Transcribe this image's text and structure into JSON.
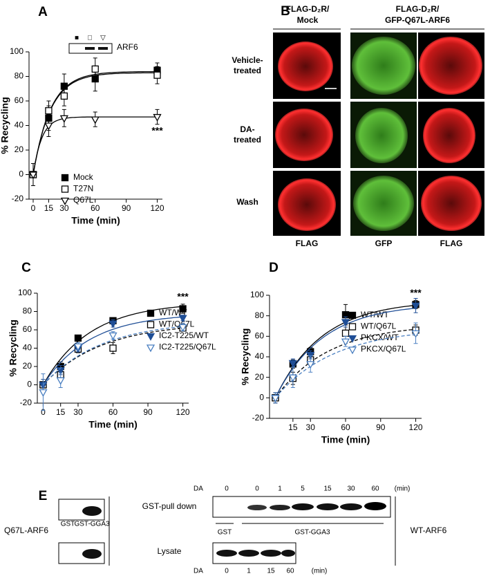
{
  "chart_data": [
    {
      "type": "scatter",
      "label": "A",
      "ylabel": "% Recycling",
      "xlabel": "Time (min)",
      "x": [
        0,
        15,
        30,
        60,
        120
      ],
      "series": [
        {
          "name": "Mock",
          "color": "#000000",
          "marker": "filled-square",
          "values": [
            0,
            46,
            72,
            78,
            85
          ],
          "errors": [
            9,
            10,
            10,
            10,
            6
          ],
          "fit": {
            "plateau": 83,
            "rate": 0.06
          },
          "dashed": false
        },
        {
          "name": "T27N",
          "color": "#000000",
          "marker": "open-square",
          "values": [
            0,
            52,
            64,
            86,
            81
          ],
          "errors": [
            9,
            8,
            8,
            9,
            7
          ],
          "fit": {
            "plateau": 84,
            "rate": 0.06
          },
          "dashed": false
        },
        {
          "name": "Q67L",
          "color": "#000000",
          "marker": "open-triangle-down",
          "values": [
            0,
            40,
            46,
            45,
            47
          ],
          "errors": [
            9,
            9,
            7,
            6,
            6
          ],
          "fit": {
            "plateau": 47,
            "rate": 0.12
          },
          "dashed": false,
          "annotation": "***"
        }
      ],
      "xlim": [
        -4,
        125
      ],
      "xticks": [
        0,
        15,
        30,
        60,
        90,
        120
      ],
      "ylim": [
        -20,
        100
      ],
      "yticks": [
        -20,
        0,
        20,
        40,
        60,
        80,
        100
      ],
      "legend": "lower right",
      "inset": {
        "symbols": [
          "■",
          "□",
          "▽"
        ],
        "label": "ARF6"
      }
    },
    {
      "type": "scatter",
      "label": "C",
      "ylabel": "% Recycling",
      "xlabel": "Time (min)",
      "x": [
        0,
        15,
        30,
        60,
        120
      ],
      "series": [
        {
          "name": "WT/WT",
          "color": "#000000",
          "marker": "filled-square",
          "values": [
            0,
            20,
            51,
            70,
            83
          ],
          "errors": [
            6,
            5,
            3,
            3,
            5
          ],
          "fit": {
            "plateau": 90,
            "rate": 0.025
          },
          "dashed": false,
          "annotation": "***"
        },
        {
          "name": "WT/Q67L",
          "color": "#000000",
          "marker": "open-square",
          "values": [
            0,
            11,
            39,
            40,
            62
          ],
          "errors": [
            6,
            6,
            4,
            6,
            3
          ],
          "fit": {
            "plateau": 68,
            "rate": 0.02
          },
          "dashed": true
        },
        {
          "name": "IC2-T225/WT",
          "color": "#1f4e96",
          "marker": "filled-triangle-down",
          "values": [
            0,
            16,
            40,
            67,
            73
          ],
          "errors": [
            6,
            5,
            4,
            4,
            3
          ],
          "fit": {
            "plateau": 78,
            "rate": 0.025
          },
          "dashed": false
        },
        {
          "name": "IC2-T225/Q67L",
          "color": "#4a7fc1",
          "marker": "open-triangle-down",
          "values": [
            -8,
            5,
            42,
            54,
            63
          ],
          "errors": [
            20,
            8,
            4,
            4,
            4
          ],
          "fit": {
            "plateau": 70,
            "rate": 0.02
          },
          "dashed": true
        }
      ],
      "xlim": [
        -5,
        125
      ],
      "xticks": [
        0,
        15,
        30,
        60,
        90,
        120
      ],
      "ylim": [
        -20,
        100
      ],
      "yticks": [
        -20,
        0,
        20,
        40,
        60,
        80,
        100
      ],
      "legend": "right"
    },
    {
      "type": "scatter",
      "label": "D",
      "ylabel": "% Recycling",
      "xlabel": "Time (min)",
      "x": [
        0,
        15,
        30,
        60,
        120
      ],
      "series": [
        {
          "name": "WT/WT",
          "color": "#000000",
          "marker": "filled-square",
          "values": [
            0,
            33,
            45,
            81,
            91
          ],
          "errors": [
            5,
            4,
            4,
            10,
            4
          ],
          "fit": {
            "plateau": 95,
            "rate": 0.025
          },
          "dashed": false,
          "annotation": "***"
        },
        {
          "name": "WT/Q67L",
          "color": "#000000",
          "marker": "open-square",
          "values": [
            0,
            19,
            37,
            63,
            66
          ],
          "errors": [
            5,
            6,
            5,
            6,
            5
          ],
          "fit": {
            "plateau": 72,
            "rate": 0.022
          },
          "dashed": true
        },
        {
          "name": "PKCX/WT",
          "color": "#1f4e96",
          "marker": "filled-triangle-down",
          "values": [
            0,
            34,
            42,
            74,
            90
          ],
          "errors": [
            5,
            4,
            4,
            5,
            7
          ],
          "fit": {
            "plateau": 92,
            "rate": 0.025
          },
          "dashed": false
        },
        {
          "name": "PKCX/Q67L",
          "color": "#4a7fc1",
          "marker": "open-triangle-down",
          "values": [
            0,
            20,
            33,
            55,
            63
          ],
          "errors": [
            5,
            10,
            8,
            5,
            10
          ],
          "fit": {
            "plateau": 68,
            "rate": 0.02
          },
          "dashed": true
        }
      ],
      "xlim": [
        -5,
        125
      ],
      "xticks": [
        15,
        30,
        60,
        90,
        120
      ],
      "ylim": [
        -20,
        100
      ],
      "yticks": [
        -20,
        0,
        20,
        40,
        60,
        80,
        100
      ],
      "legend": "right"
    }
  ],
  "panel_b": {
    "label": "B",
    "column_headers": [
      [
        "FLAG-D₂R/",
        "Mock"
      ],
      [
        "FLAG-D₂R/",
        "GFP-Q67L-ARF6"
      ]
    ],
    "rows": [
      [
        "Vehicle-",
        "treated"
      ],
      [
        "DA-",
        "treated"
      ],
      [
        "Wash"
      ]
    ],
    "channels": [
      "FLAG",
      "GFP",
      "FLAG"
    ]
  },
  "panel_e": {
    "label": "E",
    "top_axis": {
      "label": "DA",
      "times": [
        0,
        0,
        1,
        5,
        15,
        30,
        60
      ],
      "unit": "(min)"
    },
    "pull_down_label": "GST-pull down",
    "lysate_label": "Lysate",
    "left_lanes": [
      "GST",
      "GST-GGA3"
    ],
    "left_construct": "Q67L-ARF6",
    "right_groups": [
      "GST",
      "GST-GGA3"
    ],
    "right_construct": "WT-ARF6",
    "bottom_axis": {
      "label": "DA",
      "times": [
        0,
        1,
        15,
        60
      ],
      "unit": "(min)"
    }
  }
}
